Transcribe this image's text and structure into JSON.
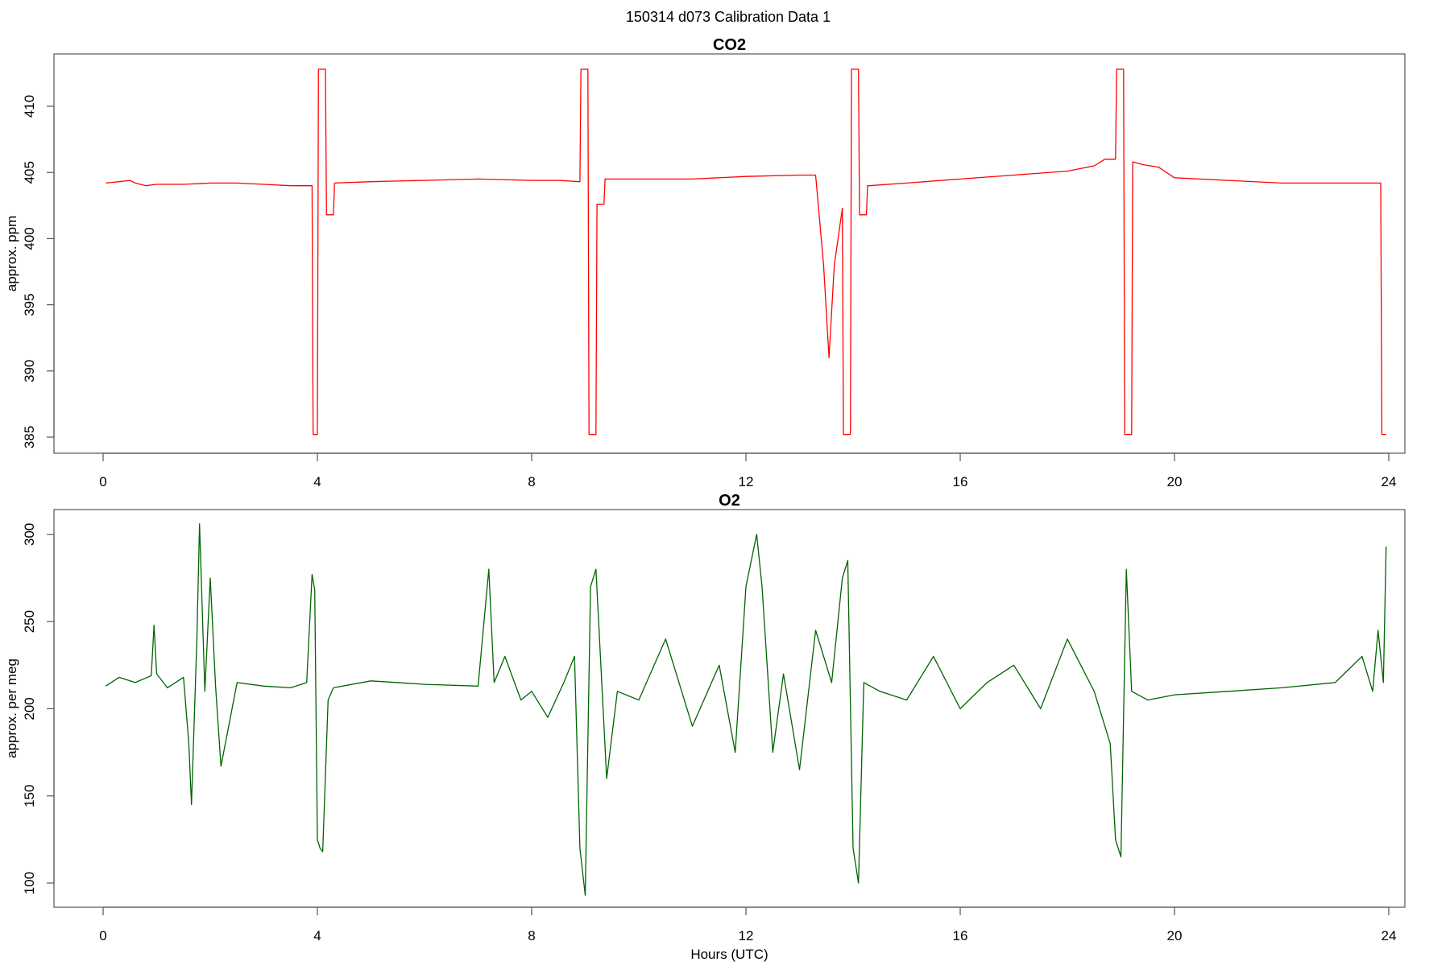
{
  "figure": {
    "title": "150314   d073   Calibration Data 1"
  },
  "chart_data": [
    {
      "type": "line",
      "title": "CO2",
      "xlabel": "",
      "ylabel": "approx. ppm",
      "xlim": [
        0,
        24
      ],
      "ylim": [
        385,
        412.8
      ],
      "xticks": [
        0,
        4,
        8,
        12,
        16,
        20,
        24
      ],
      "yticks": [
        385,
        390,
        395,
        400,
        405,
        410
      ],
      "grid": false,
      "color": "#ff0000",
      "series": [
        {
          "x": [
            0.05,
            0.3,
            0.5,
            0.6,
            0.8,
            1.0,
            1.5,
            2.0,
            2.5,
            3.0,
            3.5,
            3.9,
            3.92,
            4.0,
            4.02,
            4.15,
            4.17,
            4.3,
            4.32,
            5.0,
            6.0,
            7.0,
            8.0,
            8.5,
            8.9,
            8.92,
            9.05,
            9.07,
            9.2,
            9.22,
            9.35,
            9.37,
            10.0,
            11.0,
            12.0,
            13.0,
            13.3,
            13.45,
            13.55,
            13.65,
            13.8,
            13.82,
            13.95,
            13.97,
            14.1,
            14.12,
            14.25,
            14.27,
            14.3,
            15.0,
            16.0,
            17.0,
            18.0,
            18.5,
            18.7,
            18.8,
            18.9,
            18.92,
            19.05,
            19.07,
            19.2,
            19.22,
            19.4,
            19.7,
            20.0,
            21.0,
            22.0,
            23.0,
            23.85,
            23.87,
            23.95
          ],
          "y": [
            404.2,
            404.3,
            404.4,
            404.2,
            404.0,
            404.1,
            404.1,
            404.2,
            404.2,
            404.1,
            404.0,
            404.0,
            385.2,
            385.2,
            412.8,
            412.8,
            401.8,
            401.8,
            404.2,
            404.3,
            404.4,
            404.5,
            404.4,
            404.4,
            404.3,
            412.8,
            412.8,
            385.2,
            385.2,
            402.6,
            402.6,
            404.5,
            404.5,
            404.5,
            404.7,
            404.8,
            404.8,
            398.0,
            391.0,
            398.0,
            402.3,
            385.2,
            385.2,
            412.8,
            412.8,
            401.8,
            401.8,
            404.0,
            404.0,
            404.2,
            404.5,
            404.8,
            405.1,
            405.5,
            406.0,
            406.0,
            406.0,
            412.8,
            412.8,
            385.2,
            385.2,
            405.8,
            405.6,
            405.4,
            404.6,
            404.4,
            404.2,
            404.2,
            404.2,
            385.2,
            385.2
          ]
        }
      ]
    },
    {
      "type": "line",
      "title": "O2",
      "xlabel": "Hours (UTC)",
      "ylabel": "approx. per meg",
      "xlim": [
        0,
        24
      ],
      "ylim": [
        100,
        305
      ],
      "xticks": [
        0,
        4,
        8,
        12,
        16,
        20,
        24
      ],
      "yticks": [
        100,
        150,
        200,
        250,
        300
      ],
      "grid": false,
      "color": "#006400",
      "series": [
        {
          "x": [
            0.05,
            0.3,
            0.6,
            0.9,
            0.95,
            1.0,
            1.2,
            1.5,
            1.6,
            1.65,
            1.75,
            1.8,
            1.9,
            2.0,
            2.1,
            2.2,
            2.5,
            3.0,
            3.5,
            3.8,
            3.9,
            3.95,
            4.0,
            4.05,
            4.1,
            4.2,
            4.3,
            5.0,
            6.0,
            7.0,
            7.2,
            7.3,
            7.5,
            7.8,
            8.0,
            8.3,
            8.6,
            8.8,
            8.9,
            9.0,
            9.1,
            9.2,
            9.4,
            9.6,
            10.0,
            10.5,
            11.0,
            11.5,
            11.8,
            12.0,
            12.2,
            12.3,
            12.5,
            12.7,
            13.0,
            13.3,
            13.6,
            13.8,
            13.9,
            14.0,
            14.1,
            14.2,
            14.5,
            15.0,
            15.5,
            16.0,
            16.5,
            17.0,
            17.5,
            18.0,
            18.5,
            18.8,
            18.9,
            19.0,
            19.1,
            19.2,
            19.5,
            20.0,
            21.0,
            22.0,
            23.0,
            23.5,
            23.7,
            23.8,
            23.9,
            23.95
          ],
          "y": [
            213,
            218,
            215,
            219,
            248,
            220,
            212,
            218,
            180,
            145,
            240,
            306,
            210,
            275,
            213,
            167,
            215,
            213,
            212,
            215,
            277,
            268,
            125,
            120,
            118,
            205,
            212,
            216,
            214,
            213,
            280,
            215,
            230,
            205,
            210,
            195,
            215,
            230,
            120,
            93,
            270,
            280,
            160,
            210,
            205,
            240,
            190,
            225,
            175,
            270,
            300,
            270,
            175,
            220,
            165,
            245,
            215,
            275,
            285,
            120,
            100,
            215,
            210,
            205,
            230,
            200,
            215,
            225,
            200,
            240,
            210,
            180,
            125,
            115,
            280,
            210,
            205,
            208,
            210,
            212,
            215,
            230,
            210,
            245,
            215,
            293
          ]
        }
      ]
    }
  ]
}
